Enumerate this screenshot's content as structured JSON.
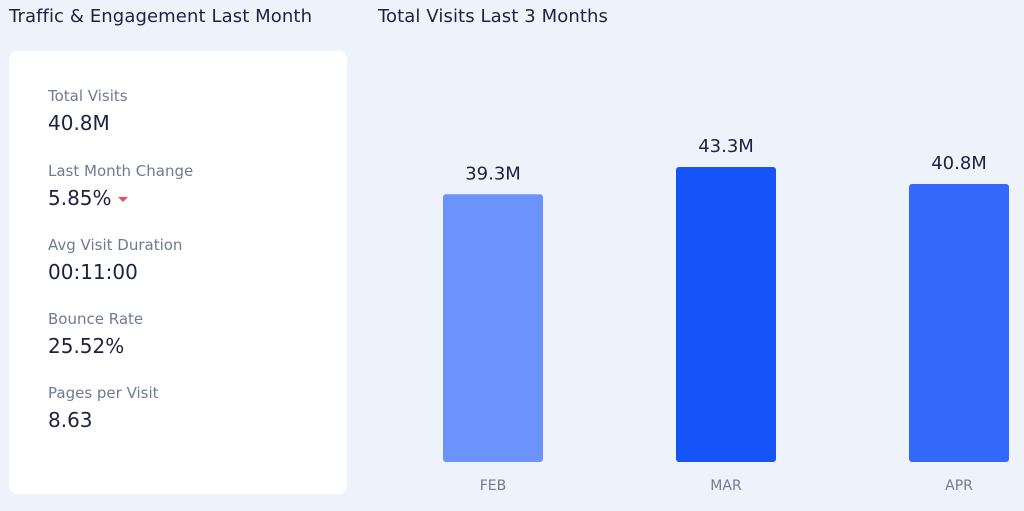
{
  "titles": {
    "left": "Traffic & Engagement Last Month",
    "right": "Total Visits Last 3 Months"
  },
  "metrics": [
    {
      "label": "Total Visits",
      "value": "40.8M"
    },
    {
      "label": "Last Month Change",
      "value": "5.85%",
      "trend": "down",
      "trend_color": "#e8505b"
    },
    {
      "label": "Avg Visit Duration",
      "value": "00:11:00"
    },
    {
      "label": "Bounce Rate",
      "value": "25.52%"
    },
    {
      "label": "Pages per Visit",
      "value": "8.63"
    }
  ],
  "chart_data": {
    "type": "bar",
    "title": "Total Visits Last 3 Months",
    "categories": [
      "FEB",
      "MAR",
      "APR"
    ],
    "values": [
      39.3,
      43.3,
      40.8
    ],
    "value_labels": [
      "39.3M",
      "43.3M",
      "40.8M"
    ],
    "unit": "M",
    "ylim": [
      0,
      43.3
    ],
    "grid": false,
    "colors": [
      "#6b93fb",
      "#1654f7",
      "#3369fb"
    ]
  }
}
